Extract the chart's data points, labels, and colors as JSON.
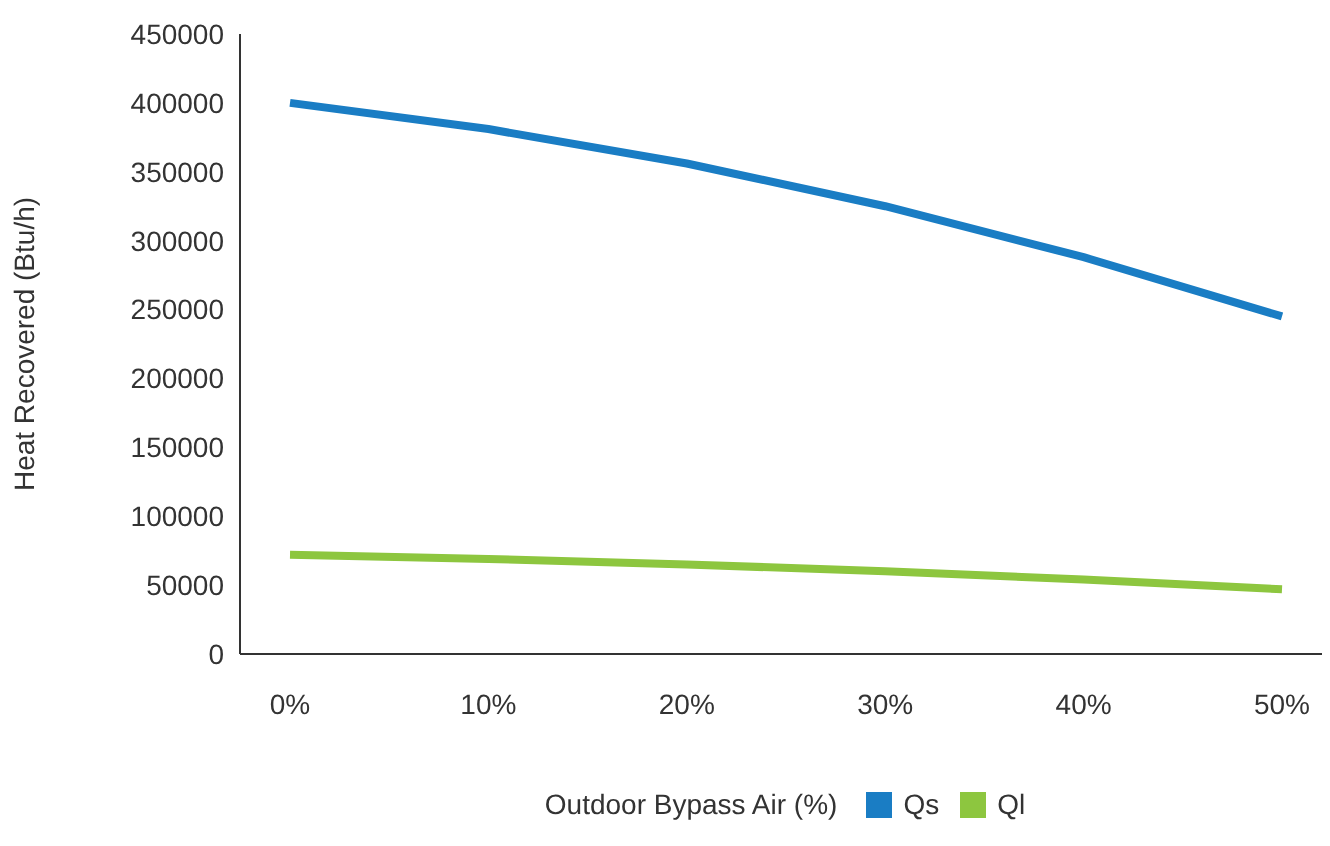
{
  "chart_data": {
    "type": "line",
    "xlabel": "Outdoor Bypass Air (%)",
    "ylabel": "Heat Recovered (Btu/h)",
    "categories": [
      "0%",
      "10%",
      "20%",
      "30%",
      "40%",
      "50%"
    ],
    "series": [
      {
        "name": "Qs",
        "color": "#1a7dc4",
        "values": [
          400000,
          381000,
          356000,
          325000,
          288000,
          245000
        ]
      },
      {
        "name": "Ql",
        "color": "#8dc63f",
        "values": [
          72000,
          69000,
          65000,
          60000,
          54000,
          47000
        ]
      }
    ],
    "ylim": [
      0,
      450000
    ],
    "yticks": [
      0,
      50000,
      100000,
      150000,
      200000,
      250000,
      300000,
      350000,
      400000,
      450000
    ],
    "grid": false,
    "legend": "bottom"
  }
}
